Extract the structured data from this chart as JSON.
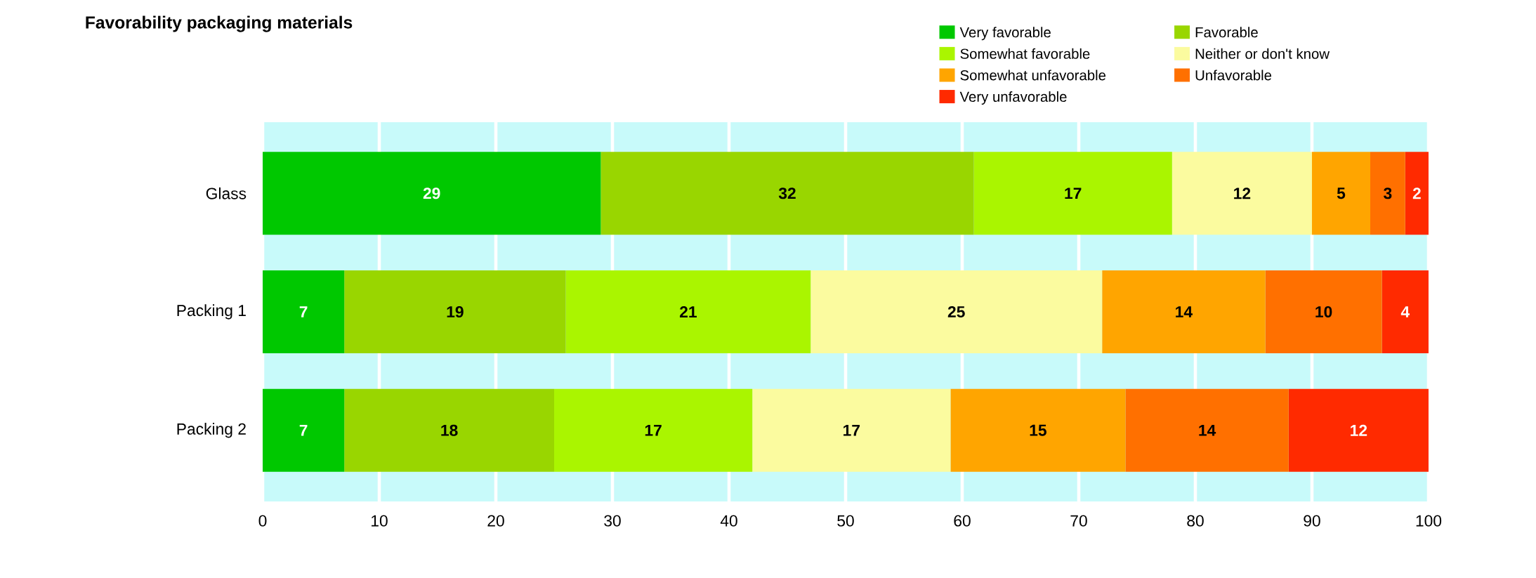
{
  "chart_data": {
    "type": "bar",
    "orientation": "horizontal",
    "stacked": true,
    "title": "Favorability packaging materials",
    "categories": [
      "Glass",
      "Packing 1",
      "Packing 2"
    ],
    "series": [
      {
        "name": "Very favorable",
        "color": "#00c800",
        "values": [
          29,
          7,
          7
        ]
      },
      {
        "name": "Favorable",
        "color": "#99d600",
        "values": [
          32,
          19,
          18
        ]
      },
      {
        "name": "Somewhat favorable",
        "color": "#aaf500",
        "values": [
          17,
          21,
          17
        ]
      },
      {
        "name": "Neither or don't know",
        "color": "#fbfb9f",
        "values": [
          12,
          25,
          17
        ]
      },
      {
        "name": "Somewhat unfavorable",
        "color": "#ffa500",
        "values": [
          5,
          14,
          15
        ]
      },
      {
        "name": "Unfavorable",
        "color": "#ff7000",
        "values": [
          3,
          10,
          14
        ]
      },
      {
        "name": "Very unfavorable",
        "color": "#ff2a00",
        "values": [
          2,
          4,
          12
        ]
      }
    ],
    "xlim": [
      0,
      100
    ],
    "xticks": [
      0,
      10,
      20,
      30,
      40,
      50,
      60,
      70,
      80,
      90,
      100
    ],
    "grid": "x",
    "legend": "top right",
    "data_labels": true
  }
}
